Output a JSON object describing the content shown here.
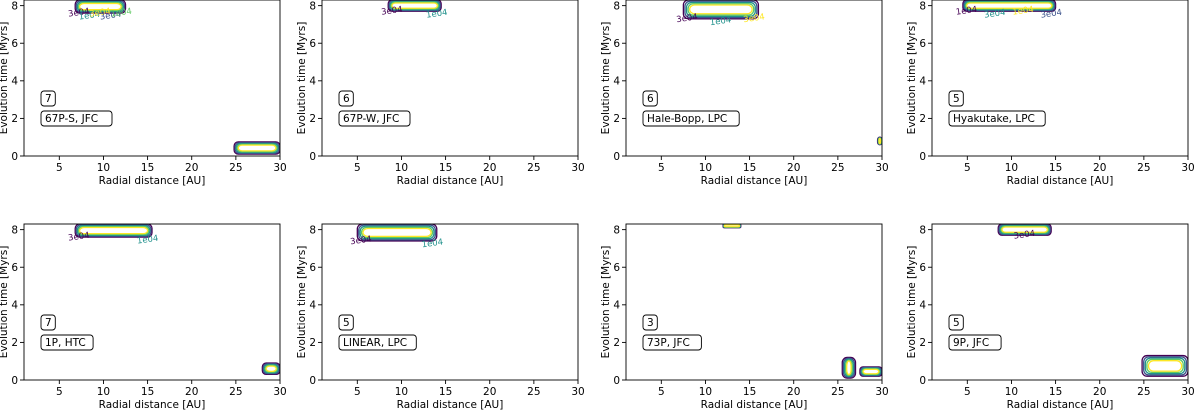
{
  "colors": {
    "axis": "#000000",
    "label_box_edge": "#000000",
    "contour_levels": [
      "#440154",
      "#3b528b",
      "#21918c",
      "#5ec962",
      "#fde725"
    ]
  },
  "chart_data": [
    {
      "type": "contour",
      "xlabel": "Radial distance [AU]",
      "ylabel": "Evolution time [Myrs]",
      "xlim": [
        1,
        30
      ],
      "ylim": [
        0,
        8.3
      ],
      "xticks": [
        "5",
        "10",
        "15",
        "20",
        "25",
        "30"
      ],
      "yticks": [
        "0",
        "2",
        "4",
        "6",
        "8"
      ],
      "box_number": "7",
      "box_label": "67P-S, JFC",
      "contour_labels": [
        "3e04",
        "1e04",
        "3e04",
        "3e04",
        "1e04"
      ],
      "regions": [
        {
          "x": [
            6.8,
            12.5
          ],
          "y": [
            7.6,
            8.3
          ]
        },
        {
          "x": [
            24.8,
            30
          ],
          "y": [
            0.1,
            0.75
          ]
        }
      ]
    },
    {
      "type": "contour",
      "xlabel": "Radial distance [AU]",
      "ylabel": "Evolution time [Myrs]",
      "xlim": [
        1,
        30
      ],
      "ylim": [
        0,
        8.3
      ],
      "xticks": [
        "5",
        "10",
        "15",
        "20",
        "25",
        "30"
      ],
      "yticks": [
        "0",
        "2",
        "4",
        "6",
        "8"
      ],
      "box_number": "6",
      "box_label": "67P-W, JFC",
      "contour_labels": [
        "3e04",
        "1e04"
      ],
      "regions": [
        {
          "x": [
            8.5,
            14.5
          ],
          "y": [
            7.7,
            8.3
          ]
        }
      ]
    },
    {
      "type": "contour",
      "xlabel": "Radial distance [AU]",
      "ylabel": "Evolution time [Myrs]",
      "xlim": [
        1,
        30
      ],
      "ylim": [
        0,
        8.3
      ],
      "xticks": [
        "5",
        "10",
        "15",
        "20",
        "25",
        "30"
      ],
      "yticks": [
        "0",
        "2",
        "4",
        "6",
        "8"
      ],
      "box_number": "6",
      "box_label": "Hale-Bopp, LPC",
      "contour_labels": [
        "3e04",
        "1e04",
        "3e04"
      ],
      "regions": [
        {
          "x": [
            7.5,
            16.0
          ],
          "y": [
            7.3,
            8.3
          ]
        },
        {
          "x": [
            29.5,
            30
          ],
          "y": [
            0.6,
            1.0
          ]
        }
      ]
    },
    {
      "type": "contour",
      "xlabel": "Radial distance [AU]",
      "ylabel": "Evolution time [Myrs]",
      "xlim": [
        1,
        30
      ],
      "ylim": [
        0,
        8.3
      ],
      "xticks": [
        "5",
        "10",
        "15",
        "20",
        "25",
        "30"
      ],
      "yticks": [
        "0",
        "2",
        "4",
        "6",
        "8"
      ],
      "box_number": "5",
      "box_label": "Hyakutake, LPC",
      "contour_labels": [
        "1e04",
        "3e04",
        "1e04",
        "3e04"
      ],
      "regions": [
        {
          "x": [
            4.5,
            15.0
          ],
          "y": [
            7.7,
            8.3
          ]
        }
      ]
    },
    {
      "type": "contour",
      "xlabel": "Radial distance [AU]",
      "ylabel": "Evolution time [Myrs]",
      "xlim": [
        1,
        30
      ],
      "ylim": [
        0,
        8.3
      ],
      "xticks": [
        "5",
        "10",
        "15",
        "20",
        "25",
        "30"
      ],
      "yticks": [
        "0",
        "2",
        "4",
        "6",
        "8"
      ],
      "box_number": "7",
      "box_label": "1P, HTC",
      "contour_labels": [
        "3e04",
        "1e04"
      ],
      "regions": [
        {
          "x": [
            6.8,
            15.5
          ],
          "y": [
            7.6,
            8.3
          ]
        },
        {
          "x": [
            28.0,
            30
          ],
          "y": [
            0.3,
            0.9
          ]
        }
      ]
    },
    {
      "type": "contour",
      "xlabel": "Radial distance [AU]",
      "ylabel": "Evolution time [Myrs]",
      "xlim": [
        1,
        30
      ],
      "ylim": [
        0,
        8.3
      ],
      "xticks": [
        "5",
        "10",
        "15",
        "20",
        "25",
        "30"
      ],
      "yticks": [
        "0",
        "2",
        "4",
        "6",
        "8"
      ],
      "box_number": "5",
      "box_label": "LINEAR, LPC",
      "contour_labels": [
        "3e04",
        "1e04"
      ],
      "regions": [
        {
          "x": [
            5.0,
            14.0
          ],
          "y": [
            7.4,
            8.3
          ]
        }
      ]
    },
    {
      "type": "contour",
      "xlabel": "Radial distance [AU]",
      "ylabel": "Evolution time [Myrs]",
      "xlim": [
        1,
        30
      ],
      "ylim": [
        0,
        8.3
      ],
      "xticks": [
        "5",
        "10",
        "15",
        "20",
        "25",
        "30"
      ],
      "yticks": [
        "0",
        "2",
        "4",
        "6",
        "8"
      ],
      "box_number": "3",
      "box_label": "73P, JFC",
      "contour_labels": [],
      "regions": [
        {
          "x": [
            12.0,
            14.0
          ],
          "y": [
            8.1,
            8.3
          ]
        },
        {
          "x": [
            25.5,
            27.0
          ],
          "y": [
            0.1,
            1.2
          ]
        },
        {
          "x": [
            27.5,
            30
          ],
          "y": [
            0.2,
            0.7
          ]
        }
      ]
    },
    {
      "type": "contour",
      "xlabel": "Radial distance [AU]",
      "ylabel": "Evolution time [Myrs]",
      "xlim": [
        1,
        30
      ],
      "ylim": [
        0,
        8.3
      ],
      "xticks": [
        "5",
        "10",
        "15",
        "20",
        "25",
        "30"
      ],
      "yticks": [
        "0",
        "2",
        "4",
        "6",
        "8"
      ],
      "box_number": "5",
      "box_label": "9P, JFC",
      "contour_labels": [
        "3e04"
      ],
      "regions": [
        {
          "x": [
            8.5,
            14.5
          ],
          "y": [
            7.7,
            8.3
          ]
        },
        {
          "x": [
            24.8,
            30
          ],
          "y": [
            0.2,
            1.3
          ]
        }
      ]
    }
  ]
}
